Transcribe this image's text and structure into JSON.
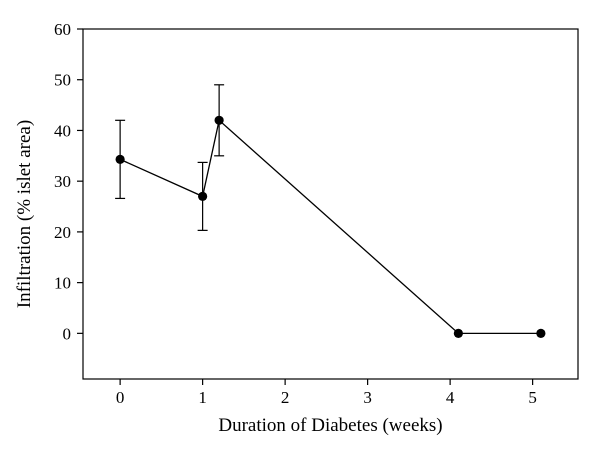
{
  "chart_data": {
    "type": "line",
    "title": "",
    "xlabel": "Duration of Diabetes (weeks)",
    "ylabel": "Infiltration (% islet area)",
    "xlim": [
      -0.45,
      5.55
    ],
    "ylim": [
      -9,
      60
    ],
    "xticks": [
      0,
      1,
      2,
      3,
      4,
      5
    ],
    "yticks": [
      0,
      10,
      20,
      30,
      40,
      50,
      60
    ],
    "grid": false,
    "legend": "none",
    "series": [
      {
        "x": [
          0,
          1,
          1.2,
          4.1,
          5.1
        ],
        "y": [
          34.3,
          27.0,
          42.0,
          0,
          0
        ],
        "error": [
          7.7,
          6.7,
          7.0,
          null,
          null
        ],
        "color": "#000000",
        "marker": "filled-circle"
      }
    ]
  }
}
